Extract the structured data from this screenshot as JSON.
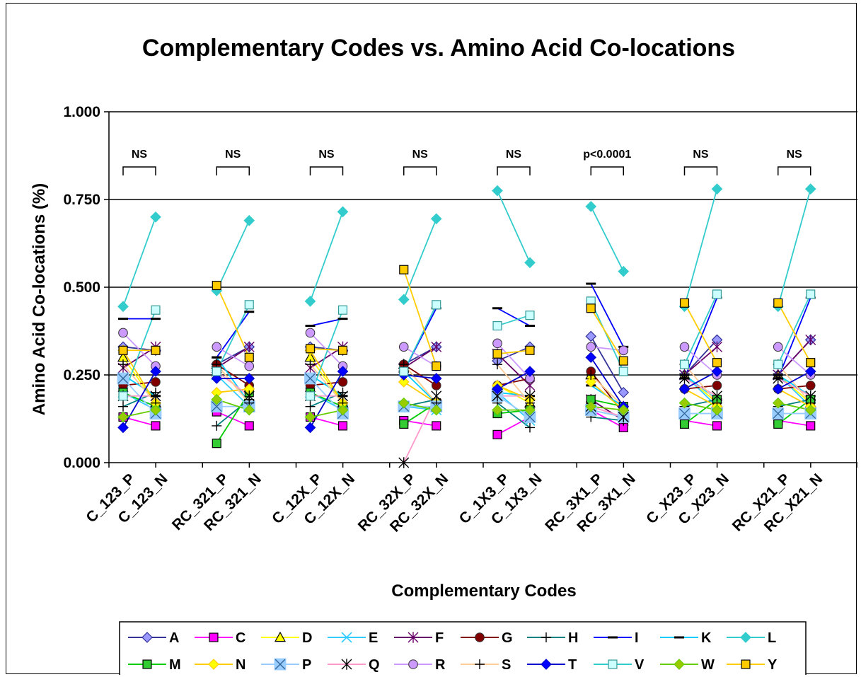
{
  "chart_data": {
    "type": "line",
    "title": "Complementary Codes vs. Amino Acid Co-locations",
    "xlabel": "Complementary Codes",
    "ylabel": "Amino Acid Co-locations (%)",
    "ylim": [
      0,
      1
    ],
    "yticks": [
      "0.000",
      "0.250",
      "0.500",
      "0.750",
      "1.000"
    ],
    "grid": "horizontal",
    "legend_position": "bottom",
    "categories": [
      "C_123_P",
      "C_123_N",
      "RC_321_P",
      "RC_321_N",
      "C_12X_P",
      "C_12X_N",
      "RC_32X_P",
      "RC_32X_N",
      "C_1X3_P",
      "C_1X3_N",
      "RC_3X1_P",
      "RC_3X1_N",
      "C_X23_P",
      "C_X23_N",
      "RC_X21_P",
      "RC_X21_N"
    ],
    "significance": [
      "NS",
      "NS",
      "NS",
      "NS",
      "NS",
      "p<0.0001",
      "NS",
      "NS"
    ],
    "series": [
      {
        "name": "A",
        "color": "#333399",
        "marker": "diamond",
        "fill": "#9999ff",
        "values": [
          0.33,
          0.32,
          0.28,
          0.33,
          0.33,
          0.32,
          0.28,
          0.33,
          0.29,
          0.33,
          0.36,
          0.2,
          0.25,
          0.35,
          0.25,
          0.35
        ]
      },
      {
        "name": "C",
        "color": "#ff00ff",
        "marker": "square",
        "fill": "#ff00ff",
        "values": [
          0.13,
          0.105,
          0.145,
          0.105,
          0.13,
          0.105,
          0.12,
          0.105,
          0.08,
          0.13,
          0.15,
          0.1,
          0.12,
          0.105,
          0.12,
          0.105
        ]
      },
      {
        "name": "D",
        "color": "#ffff00",
        "marker": "triangle",
        "fill": "#ffff00",
        "values": [
          0.3,
          0.17,
          0.28,
          0.17,
          0.3,
          0.17,
          0.28,
          0.17,
          0.22,
          0.17,
          0.25,
          0.16,
          0.25,
          0.17,
          0.25,
          0.17
        ]
      },
      {
        "name": "E",
        "color": "#33ccff",
        "marker": "x",
        "fill": "none",
        "values": [
          0.2,
          0.15,
          0.25,
          0.16,
          0.2,
          0.15,
          0.16,
          0.15,
          0.2,
          0.12,
          0.15,
          0.13,
          0.25,
          0.16,
          0.25,
          0.16
        ]
      },
      {
        "name": "F",
        "color": "#660066",
        "marker": "star",
        "fill": "none",
        "values": [
          0.27,
          0.33,
          0.27,
          0.33,
          0.27,
          0.33,
          0.27,
          0.33,
          0.31,
          0.22,
          0.18,
          0.12,
          0.25,
          0.33,
          0.25,
          0.35
        ]
      },
      {
        "name": "G",
        "color": "#800000",
        "marker": "circle",
        "fill": "#800000",
        "values": [
          0.22,
          0.23,
          0.28,
          0.22,
          0.22,
          0.23,
          0.28,
          0.22,
          0.22,
          0.24,
          0.26,
          0.14,
          0.21,
          0.22,
          0.21,
          0.22
        ]
      },
      {
        "name": "H",
        "color": "#008080",
        "marker": "plus",
        "fill": "none",
        "values": [
          0.16,
          0.2,
          0.105,
          0.18,
          0.16,
          0.2,
          0.16,
          0.18,
          0.17,
          0.1,
          0.13,
          0.12,
          0.16,
          0.18,
          0.16,
          0.18
        ]
      },
      {
        "name": "I",
        "color": "#0000ff",
        "marker": "dash",
        "fill": "none",
        "values": [
          0.41,
          0.41,
          0.3,
          0.43,
          0.39,
          0.41,
          0.26,
          0.44,
          0.44,
          0.39,
          0.51,
          0.33,
          0.24,
          0.47,
          0.24,
          0.47
        ]
      },
      {
        "name": "K",
        "color": "#00ccff",
        "marker": "dash",
        "fill": "none",
        "values": [
          0.25,
          0.19,
          0.3,
          0.17,
          0.25,
          0.19,
          0.26,
          0.17,
          0.2,
          0.19,
          0.22,
          0.16,
          0.25,
          0.18,
          0.25,
          0.19
        ]
      },
      {
        "name": "L",
        "color": "#33cccc",
        "marker": "diamond",
        "fill": "#33cccc",
        "values": [
          0.445,
          0.7,
          0.49,
          0.69,
          0.46,
          0.715,
          0.465,
          0.695,
          0.775,
          0.57,
          0.73,
          0.545,
          0.445,
          0.78,
          0.445,
          0.78
        ]
      },
      {
        "name": "M",
        "color": "#00cc00",
        "marker": "square",
        "fill": "#33cc33",
        "values": [
          0.2,
          0.16,
          0.055,
          0.2,
          0.2,
          0.16,
          0.11,
          0.17,
          0.14,
          0.15,
          0.18,
          0.16,
          0.11,
          0.18,
          0.11,
          0.18
        ]
      },
      {
        "name": "N",
        "color": "#ffcc00",
        "marker": "diamond",
        "fill": "#ffff00",
        "values": [
          0.32,
          0.17,
          0.2,
          0.21,
          0.32,
          0.17,
          0.23,
          0.17,
          0.22,
          0.18,
          0.23,
          0.15,
          0.21,
          0.16,
          0.21,
          0.16
        ]
      },
      {
        "name": "P",
        "color": "#99ccff",
        "marker": "xbox",
        "fill": "#99ccff",
        "values": [
          0.24,
          0.14,
          0.16,
          0.16,
          0.24,
          0.14,
          0.16,
          0.16,
          0.19,
          0.13,
          0.15,
          0.13,
          0.14,
          0.14,
          0.14,
          0.14
        ]
      },
      {
        "name": "Q",
        "color": "#ff99cc",
        "marker": "star",
        "fill": "none",
        "values": [
          0.19,
          0.19,
          0.26,
          0.19,
          0.19,
          0.19,
          0.0,
          0.19,
          0.19,
          0.19,
          0.16,
          0.13,
          0.24,
          0.19,
          0.24,
          0.19
        ]
      },
      {
        "name": "R",
        "color": "#cc99ff",
        "marker": "circle",
        "fill": "#cc99ff",
        "values": [
          0.37,
          0.275,
          0.33,
          0.275,
          0.37,
          0.275,
          0.33,
          0.275,
          0.34,
          0.24,
          0.33,
          0.32,
          0.33,
          0.25,
          0.33,
          0.25
        ]
      },
      {
        "name": "S",
        "color": "#ffcc99",
        "marker": "plus",
        "fill": "none",
        "values": [
          0.28,
          0.17,
          0.28,
          0.17,
          0.28,
          0.17,
          0.28,
          0.17,
          0.28,
          0.17,
          0.25,
          0.16,
          0.28,
          0.17,
          0.28,
          0.17
        ]
      },
      {
        "name": "T",
        "color": "#0000cc",
        "marker": "diamond",
        "fill": "#0000ff",
        "values": [
          0.1,
          0.26,
          0.24,
          0.24,
          0.1,
          0.26,
          0.25,
          0.24,
          0.21,
          0.26,
          0.3,
          0.16,
          0.21,
          0.26,
          0.21,
          0.26
        ]
      },
      {
        "name": "V",
        "color": "#33cccc",
        "marker": "square",
        "fill": "#ccffff",
        "values": [
          0.19,
          0.435,
          0.26,
          0.45,
          0.19,
          0.435,
          0.26,
          0.45,
          0.39,
          0.42,
          0.46,
          0.26,
          0.28,
          0.48,
          0.28,
          0.48
        ]
      },
      {
        "name": "W",
        "color": "#66cc00",
        "marker": "diamond",
        "fill": "#99cc00",
        "values": [
          0.13,
          0.15,
          0.18,
          0.15,
          0.13,
          0.15,
          0.17,
          0.15,
          0.15,
          0.15,
          0.16,
          0.15,
          0.17,
          0.15,
          0.17,
          0.15
        ]
      },
      {
        "name": "Y",
        "color": "#ffcc00",
        "marker": "square",
        "fill": "#ffcc00",
        "values": [
          0.32,
          0.32,
          0.505,
          0.3,
          0.325,
          0.32,
          0.55,
          0.275,
          0.31,
          0.32,
          0.44,
          0.29,
          0.455,
          0.285,
          0.455,
          0.285
        ]
      }
    ]
  }
}
